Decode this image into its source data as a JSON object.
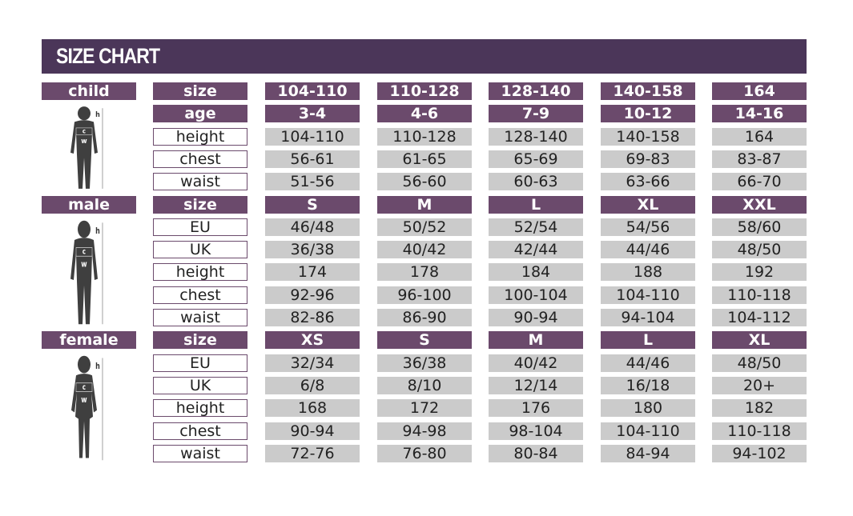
{
  "title": "SIZE CHART",
  "colors": {
    "header": "#4b3659",
    "accent": "#6b4a6c",
    "value_cell": "#cbcbcb"
  },
  "sections": [
    {
      "category": "child",
      "figure_labels": {
        "height": "h",
        "chest": "c",
        "waist": "w"
      },
      "rows": [
        {
          "label": "size",
          "header": true,
          "values": [
            "104-110",
            "110-128",
            "128-140",
            "140-158",
            "164"
          ]
        },
        {
          "label": "age",
          "header": true,
          "values": [
            "3-4",
            "4-6",
            "7-9",
            "10-12",
            "14-16"
          ]
        },
        {
          "label": "height",
          "values": [
            "104-110",
            "110-128",
            "128-140",
            "140-158",
            "164"
          ]
        },
        {
          "label": "chest",
          "values": [
            "56-61",
            "61-65",
            "65-69",
            "69-83",
            "83-87"
          ]
        },
        {
          "label": "waist",
          "values": [
            "51-56",
            "56-60",
            "60-63",
            "63-66",
            "66-70"
          ]
        }
      ]
    },
    {
      "category": "male",
      "figure_labels": {
        "height": "h",
        "chest": "c",
        "waist": "w"
      },
      "rows": [
        {
          "label": "size",
          "header": true,
          "values": [
            "S",
            "M",
            "L",
            "XL",
            "XXL"
          ]
        },
        {
          "label": "EU",
          "values": [
            "46/48",
            "50/52",
            "52/54",
            "54/56",
            "58/60"
          ]
        },
        {
          "label": "UK",
          "values": [
            "36/38",
            "40/42",
            "42/44",
            "44/46",
            "48/50"
          ]
        },
        {
          "label": "height",
          "values": [
            "174",
            "178",
            "184",
            "188",
            "192"
          ]
        },
        {
          "label": "chest",
          "values": [
            "92-96",
            "96-100",
            "100-104",
            "104-110",
            "110-118"
          ]
        },
        {
          "label": "waist",
          "values": [
            "82-86",
            "86-90",
            "90-94",
            "94-104",
            "104-112"
          ]
        }
      ]
    },
    {
      "category": "female",
      "figure_labels": {
        "height": "h",
        "chest": "c",
        "waist": "w"
      },
      "rows": [
        {
          "label": "size",
          "header": true,
          "values": [
            "XS",
            "S",
            "M",
            "L",
            "XL"
          ]
        },
        {
          "label": "EU",
          "values": [
            "32/34",
            "36/38",
            "40/42",
            "44/46",
            "48/50"
          ]
        },
        {
          "label": "UK",
          "values": [
            "6/8",
            "8/10",
            "12/14",
            "16/18",
            "20+"
          ]
        },
        {
          "label": "height",
          "values": [
            "168",
            "172",
            "176",
            "180",
            "182"
          ]
        },
        {
          "label": "chest",
          "values": [
            "90-94",
            "94-98",
            "98-104",
            "104-110",
            "110-118"
          ]
        },
        {
          "label": "waist",
          "values": [
            "72-76",
            "76-80",
            "80-84",
            "84-94",
            "94-102"
          ]
        }
      ]
    }
  ]
}
